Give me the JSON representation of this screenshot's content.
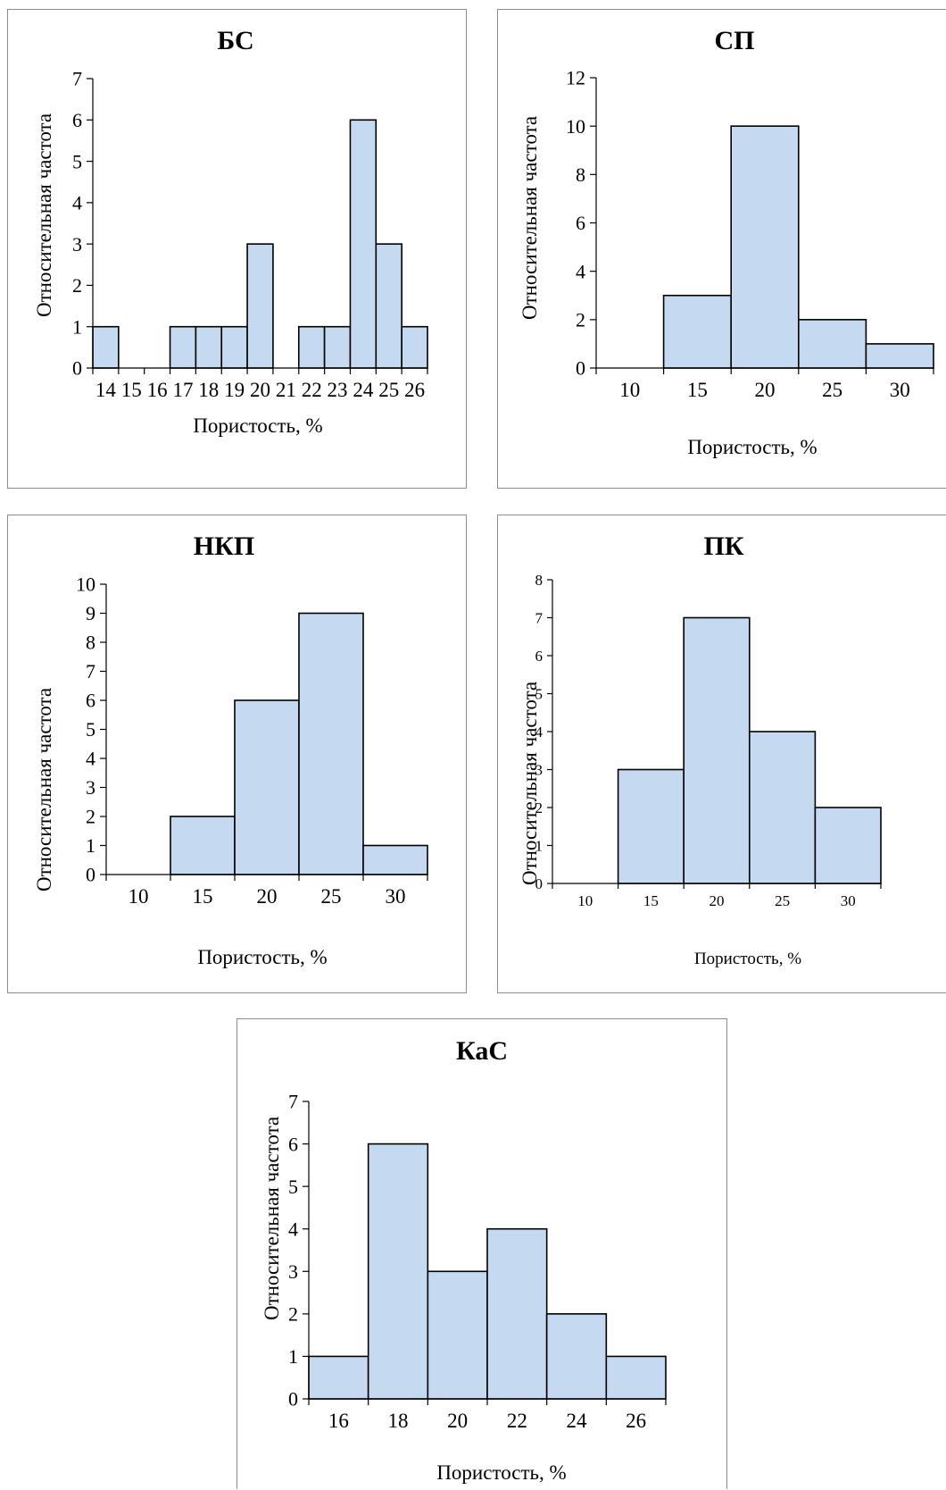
{
  "chart_data": [
    {
      "type": "bar",
      "title": "БС",
      "xlabel": "Пористость, %",
      "ylabel": "Относительная частота",
      "ylim": [
        0,
        7
      ],
      "yticks": [
        "0",
        "1",
        "2",
        "3",
        "4",
        "5",
        "6",
        "7"
      ],
      "categories": [
        "14",
        "15",
        "16",
        "17",
        "18",
        "19",
        "20",
        "21",
        "22",
        "23",
        "24",
        "25",
        "26"
      ],
      "values": [
        1,
        0,
        0,
        1,
        1,
        1,
        3,
        0,
        1,
        1,
        6,
        3,
        1
      ],
      "bar_color": "#c5d9f1"
    },
    {
      "type": "bar",
      "title": "СП",
      "xlabel": "Пористость, %",
      "ylabel": "Относительная частота",
      "ylim": [
        0,
        12
      ],
      "yticks": [
        "0",
        "2",
        "4",
        "6",
        "8",
        "10",
        "12"
      ],
      "categories": [
        "10",
        "15",
        "20",
        "25",
        "30"
      ],
      "values": [
        0,
        3,
        10,
        2,
        1
      ],
      "bar_color": "#c5d9f1"
    },
    {
      "type": "bar",
      "title": "НКП",
      "xlabel": "Пористость, %",
      "ylabel": "Относительная частота",
      "ylim": [
        0,
        10
      ],
      "yticks": [
        "0",
        "1",
        "2",
        "3",
        "4",
        "5",
        "6",
        "7",
        "8",
        "9",
        "10"
      ],
      "categories": [
        "10",
        "15",
        "20",
        "25",
        "30"
      ],
      "values": [
        0,
        2,
        6,
        9,
        1
      ],
      "bar_color": "#c5d9f1"
    },
    {
      "type": "bar",
      "title": "ПК",
      "xlabel": "Пористость, %",
      "ylabel": "Относительная частота",
      "ylim": [
        0,
        8
      ],
      "yticks": [
        "0",
        "1",
        "2",
        "3",
        "4",
        "5",
        "6",
        "7",
        "8"
      ],
      "categories": [
        "10",
        "15",
        "20",
        "25",
        "30"
      ],
      "values": [
        0,
        3,
        7,
        4,
        2
      ],
      "bar_color": "#c5d9f1"
    },
    {
      "type": "bar",
      "title": "КаС",
      "xlabel": "Пористость, %",
      "ylabel": "Относительная частота",
      "ylim": [
        0,
        7
      ],
      "yticks": [
        "0",
        "1",
        "2",
        "3",
        "4",
        "5",
        "6",
        "7"
      ],
      "categories": [
        "16",
        "18",
        "20",
        "22",
        "24",
        "26"
      ],
      "values": [
        1,
        6,
        3,
        4,
        2,
        1
      ],
      "bar_color": "#c5d9f1"
    }
  ]
}
